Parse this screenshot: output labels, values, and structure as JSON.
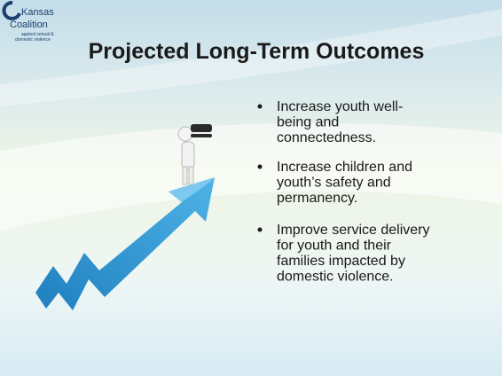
{
  "logo": {
    "name": "Kansas",
    "name2": "Coalition",
    "tagline": [
      "against sexual &",
      "domestic violence"
    ]
  },
  "title": "Projected Long-Term Outcomes",
  "bullets": [
    [
      "Increase youth well-",
      "being and",
      "connectedness."
    ],
    [
      "Increase children and",
      "youth’s safety and",
      "permanency."
    ],
    [
      "Improve service delivery",
      "for youth and their",
      "families impacted by",
      "domestic violence."
    ]
  ]
}
